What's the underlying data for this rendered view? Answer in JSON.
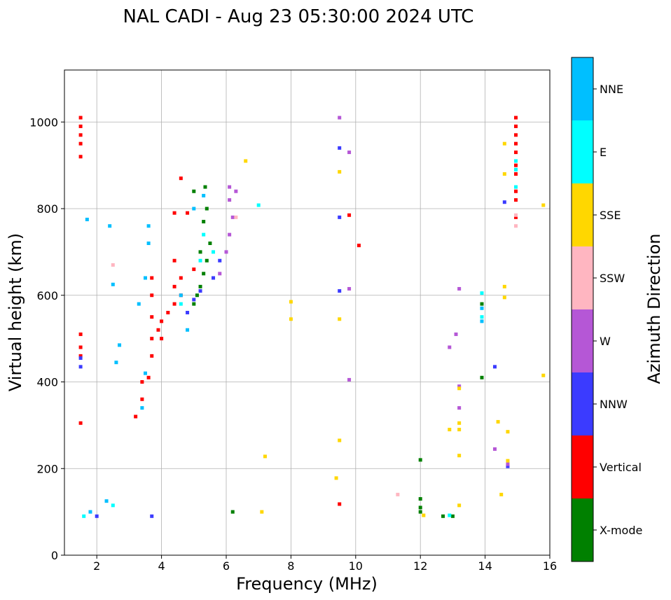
{
  "chart_data": {
    "type": "scatter",
    "title": "NAL CADI - Aug 23 05:30:00 2024 UTC",
    "xlabel": "Frequency (MHz)",
    "ylabel": "Virtual height (km)",
    "xlim": [
      1,
      16
    ],
    "ylim": [
      0,
      1120
    ],
    "xticks": [
      2,
      4,
      6,
      8,
      10,
      12,
      14,
      16
    ],
    "yticks": [
      0,
      200,
      400,
      600,
      800,
      1000
    ],
    "grid": true,
    "colorbar": {
      "label": "Azimuth Direction",
      "categories": [
        {
          "name": "X-mode",
          "color": "#008000"
        },
        {
          "name": "Vertical",
          "color": "#ff0000"
        },
        {
          "name": "NNW",
          "color": "#3b3bff"
        },
        {
          "name": "W",
          "color": "#b557d6"
        },
        {
          "name": "SSW",
          "color": "#ffb6c1"
        },
        {
          "name": "SSE",
          "color": "#ffd700"
        },
        {
          "name": "E",
          "color": "#00ffff"
        },
        {
          "name": "NNE",
          "color": "#00bfff"
        }
      ]
    },
    "series": [
      {
        "name": "X-mode",
        "points": [
          [
            5.0,
            580
          ],
          [
            5.1,
            600
          ],
          [
            5.2,
            620
          ],
          [
            5.3,
            650
          ],
          [
            5.4,
            680
          ],
          [
            5.2,
            700
          ],
          [
            5.5,
            720
          ],
          [
            5.3,
            770
          ],
          [
            5.4,
            800
          ],
          [
            5.35,
            850
          ],
          [
            5.6,
            640
          ],
          [
            5.0,
            840
          ],
          [
            12.0,
            130
          ],
          [
            12.0,
            110
          ],
          [
            12.0,
            100
          ],
          [
            12.0,
            220
          ],
          [
            12.7,
            90
          ],
          [
            13.0,
            90
          ],
          [
            6.2,
            100
          ],
          [
            13.9,
            580
          ],
          [
            13.9,
            410
          ]
        ]
      },
      {
        "name": "Vertical",
        "points": [
          [
            1.5,
            1010
          ],
          [
            1.5,
            990
          ],
          [
            1.5,
            970
          ],
          [
            1.5,
            950
          ],
          [
            1.5,
            920
          ],
          [
            1.5,
            510
          ],
          [
            1.5,
            480
          ],
          [
            1.5,
            460
          ],
          [
            1.5,
            305
          ],
          [
            3.2,
            320
          ],
          [
            3.4,
            360
          ],
          [
            3.4,
            400
          ],
          [
            3.6,
            410
          ],
          [
            3.7,
            460
          ],
          [
            3.7,
            500
          ],
          [
            3.7,
            550
          ],
          [
            3.7,
            600
          ],
          [
            3.7,
            640
          ],
          [
            3.9,
            520
          ],
          [
            4.0,
            500
          ],
          [
            4.0,
            540
          ],
          [
            4.2,
            560
          ],
          [
            4.4,
            580
          ],
          [
            4.4,
            620
          ],
          [
            4.6,
            600
          ],
          [
            4.6,
            640
          ],
          [
            4.4,
            680
          ],
          [
            4.4,
            790
          ],
          [
            4.8,
            790
          ],
          [
            4.6,
            870
          ],
          [
            5.0,
            660
          ],
          [
            10.1,
            715
          ],
          [
            9.8,
            785
          ],
          [
            9.5,
            118
          ],
          [
            14.95,
            1010
          ],
          [
            14.95,
            990
          ],
          [
            14.95,
            970
          ],
          [
            14.95,
            950
          ],
          [
            14.95,
            930
          ],
          [
            14.95,
            900
          ],
          [
            14.95,
            880
          ],
          [
            14.95,
            840
          ],
          [
            14.95,
            820
          ],
          [
            14.95,
            780
          ]
        ]
      },
      {
        "name": "NNW",
        "points": [
          [
            1.5,
            435
          ],
          [
            1.5,
            455
          ],
          [
            4.8,
            560
          ],
          [
            5.0,
            590
          ],
          [
            5.2,
            610
          ],
          [
            5.6,
            640
          ],
          [
            5.8,
            680
          ],
          [
            9.5,
            940
          ],
          [
            9.5,
            780
          ],
          [
            9.5,
            610
          ],
          [
            2.0,
            90
          ],
          [
            3.7,
            90
          ],
          [
            14.3,
            435
          ],
          [
            14.6,
            815
          ],
          [
            14.7,
            205
          ]
        ]
      },
      {
        "name": "W",
        "points": [
          [
            5.8,
            650
          ],
          [
            6.0,
            700
          ],
          [
            6.1,
            740
          ],
          [
            6.2,
            780
          ],
          [
            6.1,
            820
          ],
          [
            6.1,
            850
          ],
          [
            6.3,
            840
          ],
          [
            9.5,
            1010
          ],
          [
            9.8,
            930
          ],
          [
            9.8,
            615
          ],
          [
            9.8,
            405
          ],
          [
            13.2,
            615
          ],
          [
            13.1,
            510
          ],
          [
            12.9,
            480
          ],
          [
            13.2,
            390
          ],
          [
            13.2,
            340
          ],
          [
            14.3,
            245
          ],
          [
            14.7,
            210
          ]
        ]
      },
      {
        "name": "SSW",
        "points": [
          [
            2.5,
            670
          ],
          [
            6.3,
            780
          ],
          [
            11.3,
            140
          ],
          [
            14.95,
            760
          ],
          [
            14.95,
            785
          ]
        ]
      },
      {
        "name": "SSE",
        "points": [
          [
            6.6,
            910
          ],
          [
            9.5,
            885
          ],
          [
            9.5,
            545
          ],
          [
            9.5,
            265
          ],
          [
            9.4,
            178
          ],
          [
            8.0,
            585
          ],
          [
            8.0,
            545
          ],
          [
            7.2,
            228
          ],
          [
            7.1,
            100
          ],
          [
            13.2,
            385
          ],
          [
            13.2,
            305
          ],
          [
            13.2,
            290
          ],
          [
            13.2,
            230
          ],
          [
            13.2,
            115
          ],
          [
            12.9,
            290
          ],
          [
            14.6,
            950
          ],
          [
            14.6,
            880
          ],
          [
            14.6,
            620
          ],
          [
            14.6,
            595
          ],
          [
            14.4,
            308
          ],
          [
            14.7,
            285
          ],
          [
            14.7,
            218
          ],
          [
            14.5,
            140
          ],
          [
            15.8,
            808
          ],
          [
            15.8,
            415
          ],
          [
            12.1,
            92
          ]
        ]
      },
      {
        "name": "E",
        "points": [
          [
            4.6,
            580
          ],
          [
            5.2,
            680
          ],
          [
            5.3,
            740
          ],
          [
            5.6,
            700
          ],
          [
            7.0,
            808
          ],
          [
            13.9,
            605
          ],
          [
            13.9,
            550
          ],
          [
            14.95,
            850
          ],
          [
            14.95,
            890
          ],
          [
            14.95,
            910
          ],
          [
            1.6,
            90
          ],
          [
            2.5,
            115
          ],
          [
            12.9,
            92
          ]
        ]
      },
      {
        "name": "NNE",
        "points": [
          [
            1.7,
            775
          ],
          [
            2.4,
            760
          ],
          [
            2.5,
            625
          ],
          [
            2.7,
            485
          ],
          [
            2.6,
            445
          ],
          [
            3.3,
            580
          ],
          [
            3.5,
            420
          ],
          [
            3.6,
            720
          ],
          [
            3.6,
            760
          ],
          [
            3.5,
            640
          ],
          [
            3.4,
            340
          ],
          [
            5.3,
            830
          ],
          [
            5.0,
            800
          ],
          [
            4.8,
            520
          ],
          [
            4.6,
            600
          ],
          [
            1.8,
            100
          ],
          [
            2.3,
            125
          ],
          [
            13.9,
            540
          ],
          [
            13.9,
            570
          ]
        ]
      }
    ]
  }
}
